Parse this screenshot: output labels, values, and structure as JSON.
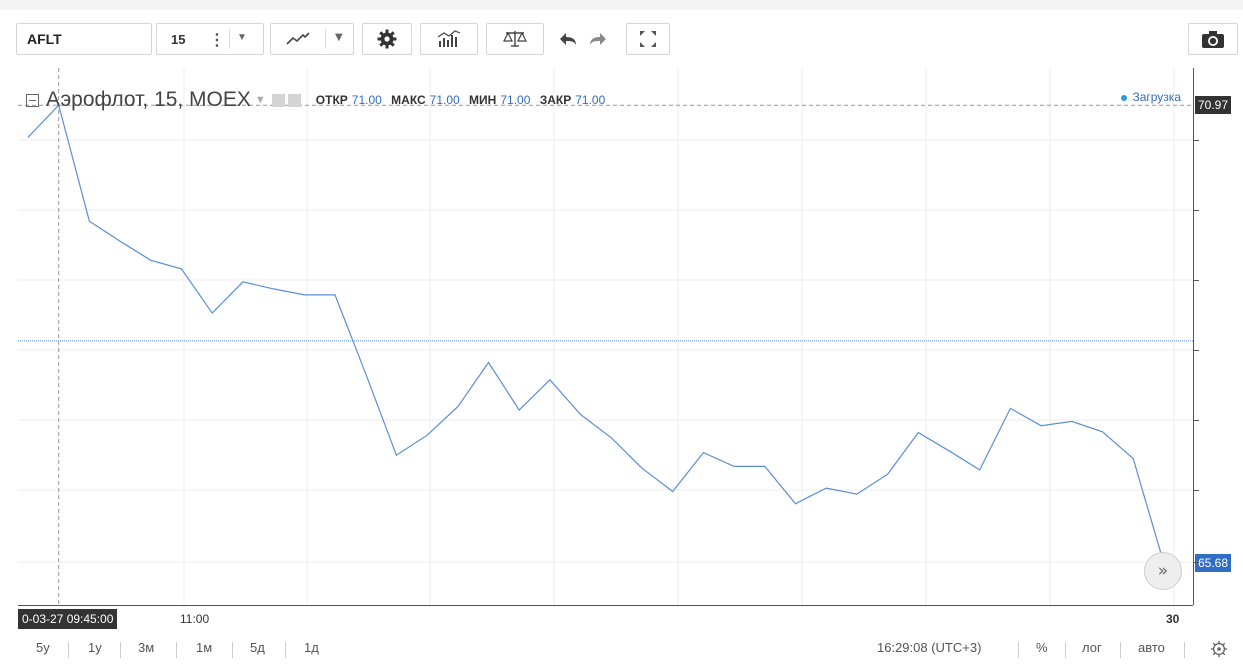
{
  "toolbar": {
    "symbol": "AFLT",
    "interval": "15",
    "icons": [
      "more-vertical-icon",
      "chevron-down-icon",
      "line-chart-icon",
      "gear-icon",
      "indicators-icon",
      "compare-icon",
      "undo-icon",
      "redo-icon",
      "fullscreen-icon",
      "camera-icon"
    ]
  },
  "legend": {
    "title": "Аэрофлот, 15, MOEX",
    "ohlc": [
      {
        "label": "ОТКР",
        "value": "71.00"
      },
      {
        "label": "МАКС",
        "value": "71.00"
      },
      {
        "label": "МИН",
        "value": "71.00"
      },
      {
        "label": "ЗАКР",
        "value": "71.00"
      }
    ]
  },
  "status": "Загрузка",
  "crosshair": {
    "time_label": "0-03-27 09:45:00",
    "price_label": "70.97"
  },
  "last_price_label": "65.68",
  "time_axis": {
    "ticks": [
      "11:00",
      "30"
    ]
  },
  "bottom": {
    "ranges": [
      "5у",
      "1у",
      "3м",
      "1м",
      "5д",
      "1д"
    ],
    "clock": "16:29:08 (UTC+3)",
    "percent": "%",
    "log": "лог",
    "auto": "авто"
  },
  "colors": {
    "line": "#5b8fd6",
    "price_tag": "#2f6ec4",
    "crosshair_tag": "#333333"
  },
  "chart_data": {
    "type": "line",
    "title": "",
    "xlabel": "",
    "ylabel": "",
    "ylim": [
      65.2,
      71.4
    ],
    "crosshair_value": 70.97,
    "reference_line": 68.25,
    "grid": true,
    "series": [
      {
        "values": [
          70.6,
          70.97,
          69.63,
          69.4,
          69.18,
          69.08,
          68.57,
          68.93,
          68.85,
          68.78,
          68.78,
          67.87,
          66.93,
          67.16,
          67.49,
          68.0,
          67.45,
          67.8,
          67.4,
          67.13,
          66.78,
          66.51,
          66.96,
          66.8,
          66.8,
          66.37,
          66.55,
          66.48,
          66.71,
          67.19,
          66.98,
          66.76,
          67.47,
          67.27,
          67.32,
          67.2,
          66.89,
          65.68
        ]
      }
    ]
  }
}
